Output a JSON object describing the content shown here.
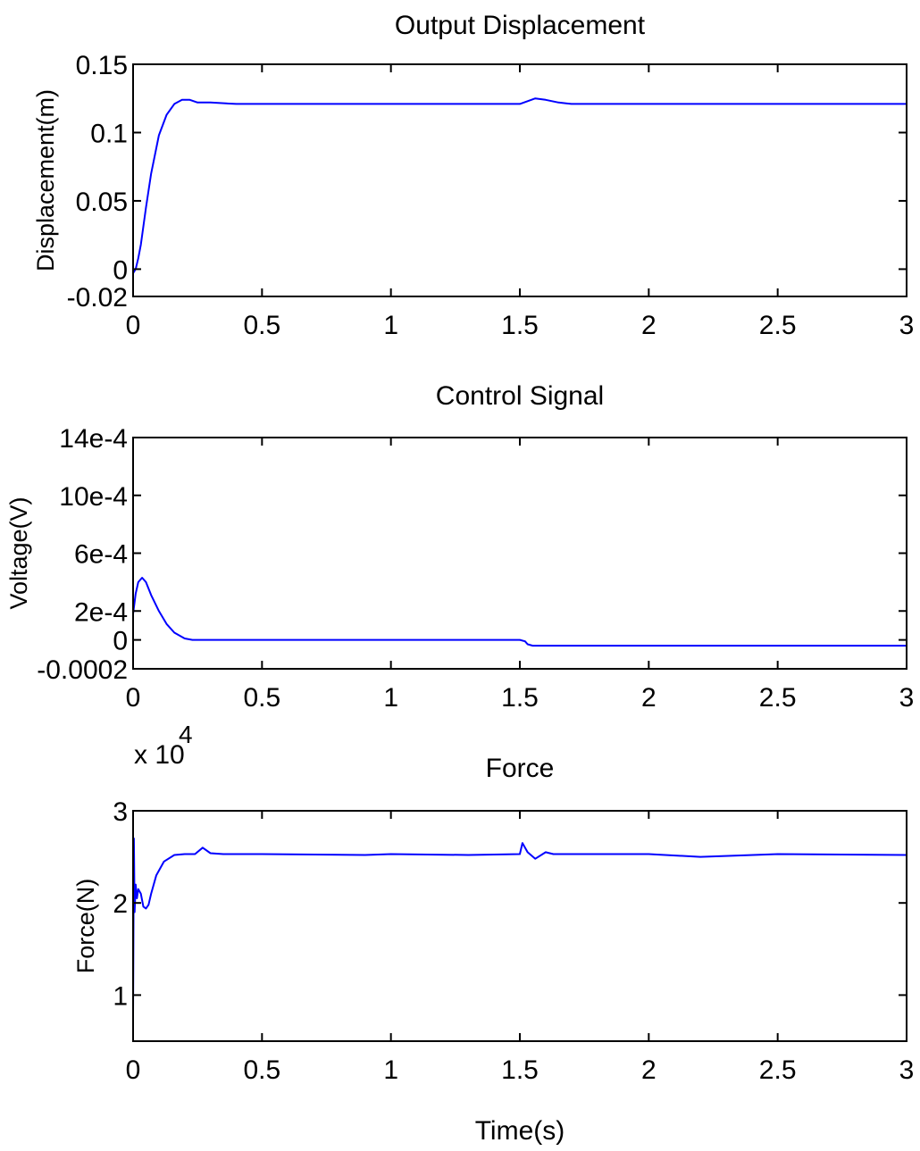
{
  "chart_data": [
    {
      "type": "line",
      "title": "Output Displacement",
      "xlabel": "",
      "ylabel": "Displacement(m)",
      "xlim": [
        0,
        3
      ],
      "ylim": [
        -0.02,
        0.15
      ],
      "xticks": [
        0,
        0.5,
        1,
        1.5,
        2,
        2.5,
        3
      ],
      "xtick_labels": [
        "0",
        "0.5",
        "1",
        "1.5",
        "2",
        "2.5",
        "3"
      ],
      "yticks": [
        -0.02,
        0,
        0.05,
        0.1,
        0.15
      ],
      "ytick_labels": [
        "-0.02",
        "0",
        "0.05",
        "0.1",
        "0.15"
      ],
      "grid": false,
      "series": [
        {
          "color": "#0000ff",
          "x": [
            0,
            0.01,
            0.02,
            0.03,
            0.05,
            0.07,
            0.1,
            0.13,
            0.16,
            0.19,
            0.22,
            0.25,
            0.3,
            0.4,
            0.6,
            0.8,
            1.0,
            1.2,
            1.4,
            1.5,
            1.53,
            1.56,
            1.6,
            1.65,
            1.7,
            1.8,
            2.0,
            2.5,
            3.0
          ],
          "y": [
            -0.003,
            0.0,
            0.008,
            0.018,
            0.045,
            0.07,
            0.098,
            0.113,
            0.121,
            0.124,
            0.124,
            0.122,
            0.122,
            0.121,
            0.121,
            0.121,
            0.121,
            0.121,
            0.121,
            0.121,
            0.123,
            0.125,
            0.124,
            0.122,
            0.121,
            0.121,
            0.121,
            0.121,
            0.121
          ]
        }
      ]
    },
    {
      "type": "line",
      "title": "Control Signal",
      "xlabel": "",
      "ylabel": "Voltage(V)",
      "xlim": [
        0,
        3
      ],
      "ylim": [
        -0.0002,
        0.0014
      ],
      "xticks": [
        0,
        0.5,
        1,
        1.5,
        2,
        2.5,
        3
      ],
      "xtick_labels": [
        "0",
        "0.5",
        "1",
        "1.5",
        "2",
        "2.5",
        "3"
      ],
      "yticks": [
        -0.0002,
        0,
        0.0002,
        0.0006,
        0.001,
        0.0014
      ],
      "ytick_labels": [
        "-0.0002",
        "0",
        "2e-4",
        "6e-4",
        "10e-4",
        "14e-4"
      ],
      "grid": false,
      "series": [
        {
          "color": "#0000ff",
          "x": [
            0,
            0.01,
            0.02,
            0.035,
            0.05,
            0.07,
            0.1,
            0.13,
            0.16,
            0.2,
            0.23,
            0.3,
            0.5,
            1.0,
            1.5,
            1.52,
            1.53,
            1.55,
            2.0,
            2.5,
            3.0
          ],
          "y": [
            0.00018,
            0.00032,
            0.0004,
            0.00043,
            0.0004,
            0.00031,
            0.0002,
            0.00011,
            5e-05,
            1e-05,
            0.0,
            0.0,
            0.0,
            0.0,
            0.0,
            -1e-05,
            -3e-05,
            -4e-05,
            -4e-05,
            -4e-05,
            -4e-05
          ]
        }
      ]
    },
    {
      "type": "line",
      "title": "Force",
      "xlabel": "Time(s)",
      "ylabel": "Force(N)",
      "y_multiplier": "x 10",
      "y_multiplier_exponent": "4",
      "xlim": [
        0,
        3
      ],
      "ylim": [
        5000,
        30000
      ],
      "xticks": [
        0,
        0.5,
        1,
        1.5,
        2,
        2.5,
        3
      ],
      "xtick_labels": [
        "0",
        "0.5",
        "1",
        "1.5",
        "2",
        "2.5",
        "3"
      ],
      "yticks": [
        10000,
        20000,
        30000
      ],
      "ytick_labels": [
        "1",
        "2",
        "3"
      ],
      "grid": false,
      "series": [
        {
          "color": "#0000ff",
          "x": [
            0,
            0.003,
            0.006,
            0.01,
            0.015,
            0.02,
            0.03,
            0.04,
            0.05,
            0.06,
            0.07,
            0.09,
            0.12,
            0.16,
            0.2,
            0.24,
            0.27,
            0.3,
            0.35,
            0.5,
            0.9,
            1.0,
            1.3,
            1.5,
            1.51,
            1.53,
            1.56,
            1.6,
            1.63,
            2.0,
            2.2,
            2.5,
            3.0
          ],
          "y": [
            8000,
            27000,
            19000,
            22000,
            20500,
            21500,
            21000,
            19600,
            19400,
            19800,
            21000,
            23000,
            24500,
            25200,
            25300,
            25300,
            26000,
            25400,
            25300,
            25300,
            25200,
            25300,
            25200,
            25300,
            26500,
            25500,
            24800,
            25500,
            25300,
            25300,
            25000,
            25300,
            25200
          ]
        }
      ]
    }
  ]
}
